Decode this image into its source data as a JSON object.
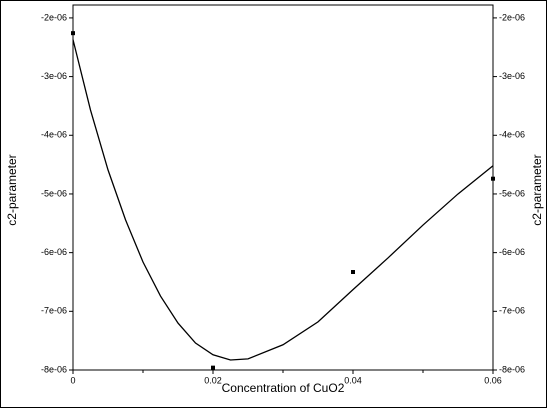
{
  "chart_data": {
    "type": "scatter",
    "xlabel": "Concentration of CuO2",
    "ylabel": "c2-parameter",
    "y2label": "c2-parameter",
    "xlim": [
      0,
      0.06
    ],
    "xticks": [
      0,
      0.02,
      0.04,
      0.06
    ],
    "xminorticks": [
      0.01,
      0.03,
      0.05
    ],
    "ylim": [
      -8e-06,
      -1.78e-06
    ],
    "yticks": [
      {
        "value": -8e-06,
        "label": "-8e-06"
      },
      {
        "value": -7e-06,
        "label": "-7e-06"
      },
      {
        "value": -6e-06,
        "label": "-6e-06"
      },
      {
        "value": -5e-06,
        "label": "-5e-06"
      },
      {
        "value": -4e-06,
        "label": "-4e-06"
      },
      {
        "value": -3e-06,
        "label": "-3e-06"
      },
      {
        "value": -2e-06,
        "label": "-2e-06"
      }
    ],
    "y2lim": [
      -8e-06,
      -1.78e-06
    ],
    "y2ticks": [
      {
        "value": -8e-06,
        "label": "-8e-06"
      },
      {
        "value": -7e-06,
        "label": "-7e-06"
      },
      {
        "value": -6e-06,
        "label": "-6e-06"
      },
      {
        "value": -5e-06,
        "label": "-5e-06"
      },
      {
        "value": -4e-06,
        "label": "-4e-06"
      },
      {
        "value": -3e-06,
        "label": "-3e-06"
      },
      {
        "value": -2e-06,
        "label": "-2e-06"
      }
    ],
    "grid": false,
    "series": [
      {
        "mode": "markers",
        "color": "#000000",
        "x": [
          0,
          0.02,
          0.04,
          0.06
        ],
        "values": [
          -2.26e-06,
          -7.96e-06,
          -6.33e-06,
          -4.74e-06
        ]
      },
      {
        "mode": "line",
        "color": "#000000",
        "x": [
          0,
          0.0025,
          0.005,
          0.0075,
          0.01,
          0.0125,
          0.015,
          0.0175,
          0.02,
          0.0225,
          0.025,
          0.03,
          0.035,
          0.04,
          0.045,
          0.05,
          0.055,
          0.06
        ],
        "values": [
          -2.37e-06,
          -3.57e-06,
          -4.59e-06,
          -5.44e-06,
          -6.16e-06,
          -6.74e-06,
          -7.2e-06,
          -7.54e-06,
          -7.74e-06,
          -7.83e-06,
          -7.81e-06,
          -7.57e-06,
          -7.18e-06,
          -6.63e-06,
          -6.09e-06,
          -5.53e-06,
          -5e-06,
          -4.52e-06
        ]
      }
    ]
  }
}
